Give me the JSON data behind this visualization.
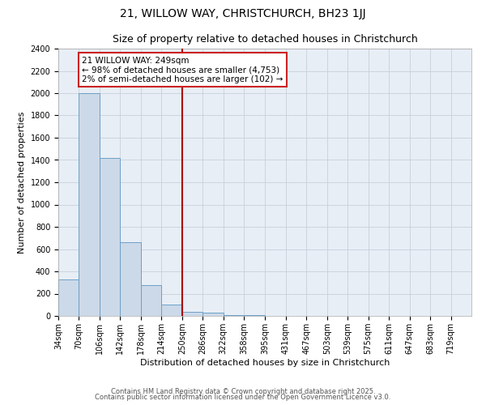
{
  "title1": "21, WILLOW WAY, CHRISTCHURCH, BH23 1JJ",
  "title2": "Size of property relative to detached houses in Christchurch",
  "xlabel": "Distribution of detached houses by size in Christchurch",
  "ylabel": "Number of detached properties",
  "bar_edges": [
    34,
    70,
    106,
    142,
    178,
    214,
    250,
    286,
    322,
    358,
    395,
    431,
    467,
    503,
    539,
    575,
    611,
    647,
    683,
    719,
    755
  ],
  "bar_heights": [
    325,
    2000,
    1420,
    660,
    280,
    100,
    40,
    30,
    10,
    5,
    2,
    1,
    0,
    0,
    0,
    0,
    0,
    0,
    0,
    0
  ],
  "property_line_x": 250,
  "ylim": [
    0,
    2400
  ],
  "yticks": [
    0,
    200,
    400,
    600,
    800,
    1000,
    1200,
    1400,
    1600,
    1800,
    2000,
    2200,
    2400
  ],
  "bar_facecolor": "#ccd9e8",
  "bar_edgecolor": "#6ca0c8",
  "vline_color": "#aa0000",
  "grid_color": "#c8d0da",
  "bg_color": "#e8eef5",
  "annotation_text1": "21 WILLOW WAY: 249sqm",
  "annotation_text2": "← 98% of detached houses are smaller (4,753)",
  "annotation_text3": "2% of semi-detached houses are larger (102) →",
  "footer1": "Contains HM Land Registry data © Crown copyright and database right 2025.",
  "footer2": "Contains public sector information licensed under the Open Government Licence v3.0.",
  "title_fontsize": 10,
  "subtitle_fontsize": 9,
  "axis_label_fontsize": 8,
  "tick_fontsize": 7,
  "annotation_fontsize": 7.5,
  "footer_fontsize": 6
}
